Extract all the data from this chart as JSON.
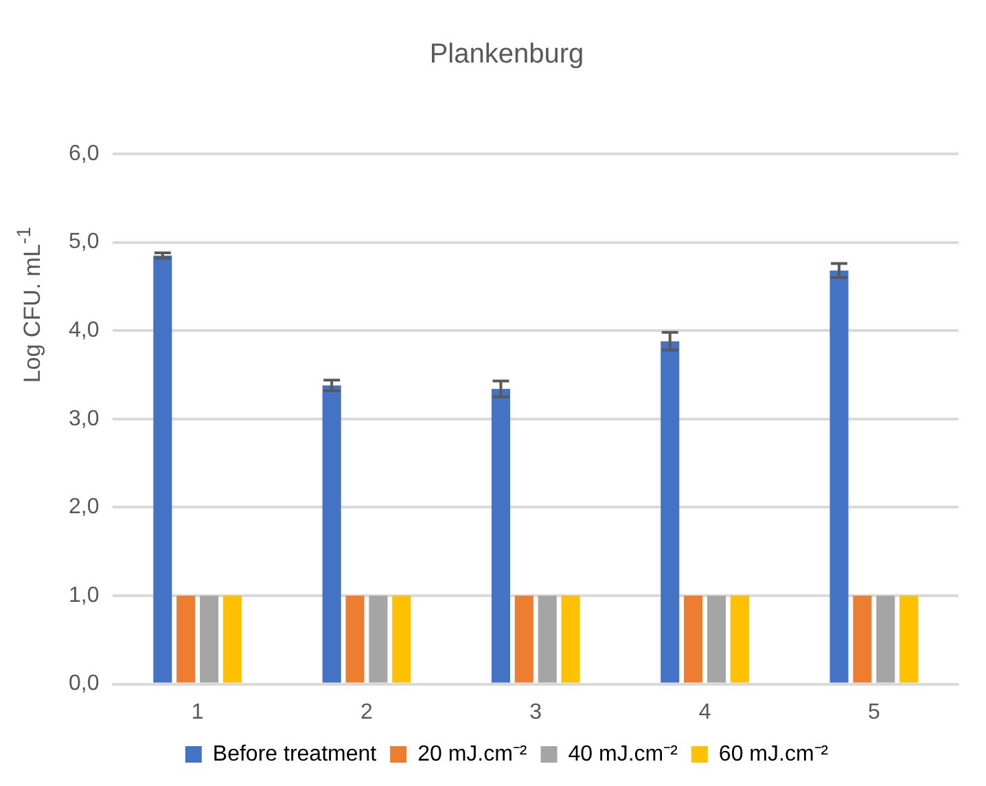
{
  "chart_data": {
    "type": "bar",
    "title": "Plankenburg",
    "ylabel": "Log CFU. mL$^{-1}$",
    "categories": [
      "1",
      "2",
      "3",
      "4",
      "5"
    ],
    "series": [
      {
        "name": "Before treatment",
        "color": "#4472c4",
        "values": [
          4.85,
          3.38,
          3.34,
          3.88,
          4.68
        ],
        "errors": [
          0.03,
          0.06,
          0.09,
          0.1,
          0.08
        ]
      },
      {
        "name": "20 mJ.cm⁻²",
        "color": "#ed7d31",
        "values": [
          1,
          1,
          1,
          1,
          1
        ]
      },
      {
        "name": "40 mJ.cm⁻²",
        "color": "#a5a5a5",
        "values": [
          1,
          1,
          1,
          1,
          1
        ]
      },
      {
        "name": "60 mJ.cm⁻²",
        "color": "#ffc000",
        "values": [
          1,
          1,
          1,
          1,
          1
        ]
      }
    ],
    "ylim": [
      0,
      6
    ],
    "yticks": [
      {
        "value": 0,
        "label": "0,0"
      },
      {
        "value": 1,
        "label": "1,0"
      },
      {
        "value": 2,
        "label": "2,0"
      },
      {
        "value": 3,
        "label": "3,0"
      },
      {
        "value": 4,
        "label": "4,0"
      },
      {
        "value": 5,
        "label": "5,0"
      },
      {
        "value": 6,
        "label": "6,0"
      }
    ],
    "grid": "y",
    "legend": "bottom"
  }
}
